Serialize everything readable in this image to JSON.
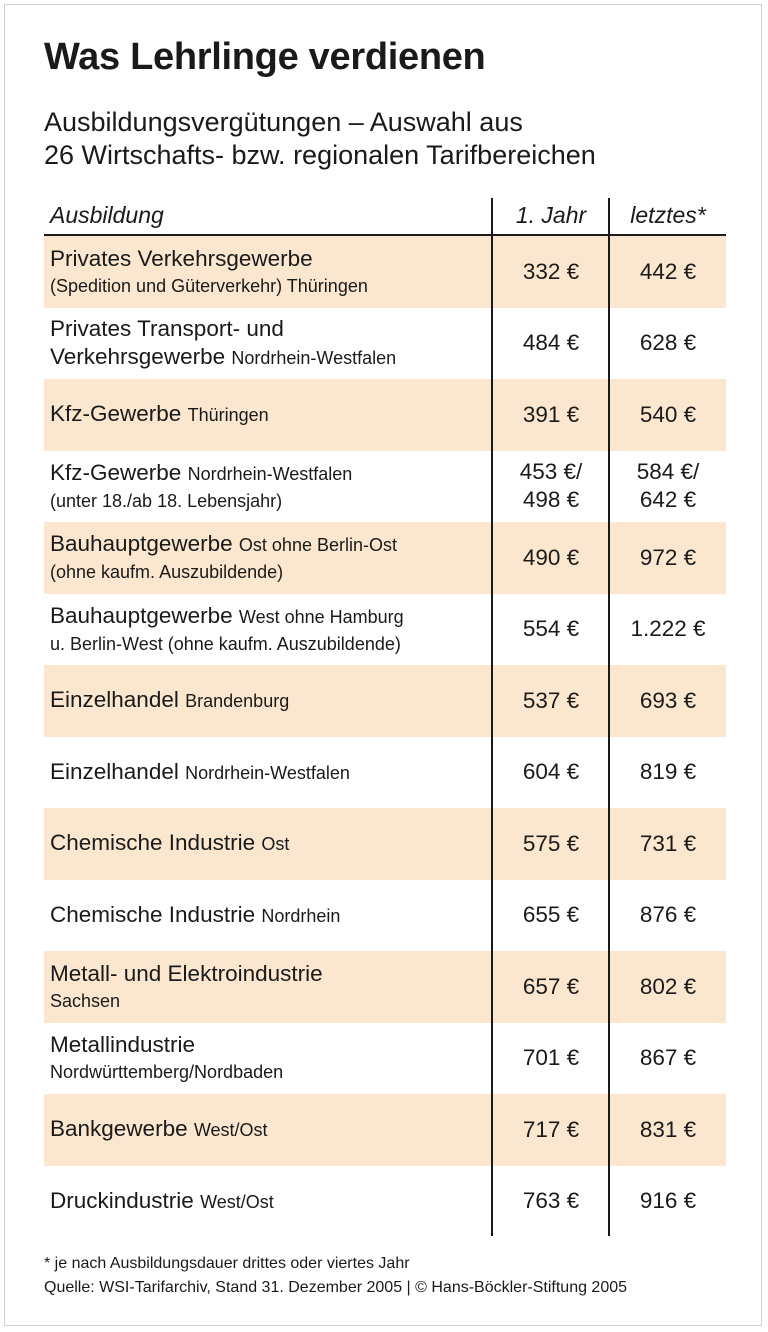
{
  "title": "Was Lehrlinge verdienen",
  "subtitle": [
    "Ausbildungsvergütungen – Auswahl aus",
    "26 Wirtschafts- bzw. regionalen Tarifbereichen"
  ],
  "headers": {
    "ausbildung": "Ausbildung",
    "jahr1": "1. Jahr",
    "letztes": "letztes*"
  },
  "rows": [
    {
      "main": "Privates Verkehrsgewerbe",
      "inline": "",
      "sub": "(Spedition und Güterverkehr) Thüringen",
      "jahr1": [
        "332 €"
      ],
      "letztes": [
        "442 €"
      ]
    },
    {
      "main": "Privates Transport- und",
      "inline": "",
      "sub_main": "Verkehrsgewerbe",
      "sub": "Nordrhein-Westfalen",
      "jahr1": [
        "484 €"
      ],
      "letztes": [
        "628 €"
      ]
    },
    {
      "main": "Kfz-Gewerbe",
      "inline": "Thüringen",
      "sub": "",
      "jahr1": [
        "391 €"
      ],
      "letztes": [
        "540 €"
      ]
    },
    {
      "main": "Kfz-Gewerbe",
      "inline": "Nordrhein-Westfalen",
      "sub": "(unter 18./ab 18. Lebensjahr)",
      "jahr1": [
        "453 €/",
        "498 €"
      ],
      "letztes": [
        "584 €/",
        "642 €"
      ]
    },
    {
      "main": "Bauhauptgewerbe",
      "inline": "Ost ohne Berlin-Ost",
      "sub": "(ohne kaufm. Auszubildende)",
      "jahr1": [
        "490 €"
      ],
      "letztes": [
        "972 €"
      ]
    },
    {
      "main": "Bauhauptgewerbe",
      "inline": "West ohne Hamburg",
      "sub": "u. Berlin-West (ohne kaufm. Auszubildende)",
      "jahr1": [
        "554 €"
      ],
      "letztes": [
        "1.222 €"
      ]
    },
    {
      "main": "Einzelhandel",
      "inline": "Brandenburg",
      "sub": "",
      "jahr1": [
        "537 €"
      ],
      "letztes": [
        "693 €"
      ]
    },
    {
      "main": "Einzelhandel",
      "inline": "Nordrhein-Westfalen",
      "sub": "",
      "jahr1": [
        "604 €"
      ],
      "letztes": [
        "819 €"
      ]
    },
    {
      "main": "Chemische Industrie",
      "inline": "Ost",
      "sub": "",
      "jahr1": [
        "575 €"
      ],
      "letztes": [
        "731 €"
      ]
    },
    {
      "main": "Chemische Industrie",
      "inline": "Nordrhein",
      "sub": "",
      "jahr1": [
        "655 €"
      ],
      "letztes": [
        "876 €"
      ]
    },
    {
      "main": "Metall- und Elektroindustrie",
      "inline": "",
      "sub": "Sachsen",
      "jahr1": [
        "657 €"
      ],
      "letztes": [
        "802 €"
      ]
    },
    {
      "main": "Metallindustrie",
      "inline": "",
      "sub": "Nordwürttemberg/Nordbaden",
      "jahr1": [
        "701 €"
      ],
      "letztes": [
        "867 €"
      ]
    },
    {
      "main": "Bankgewerbe",
      "inline": "West/Ost",
      "sub": "",
      "jahr1": [
        "717 €"
      ],
      "letztes": [
        "831 €"
      ]
    },
    {
      "main": "Druckindustrie",
      "inline": "West/Ost",
      "sub": "",
      "jahr1": [
        "763 €"
      ],
      "letztes": [
        "916 €"
      ]
    }
  ],
  "footnote": "* je nach Ausbildungsdauer drittes oder viertes Jahr",
  "source": "Quelle: WSI-Tarifarchiv, Stand 31. Dezember 2005 | © Hans-Böckler-Stiftung 2005",
  "colors": {
    "shade": "#fbe7cf",
    "text": "#1a1a1a"
  }
}
